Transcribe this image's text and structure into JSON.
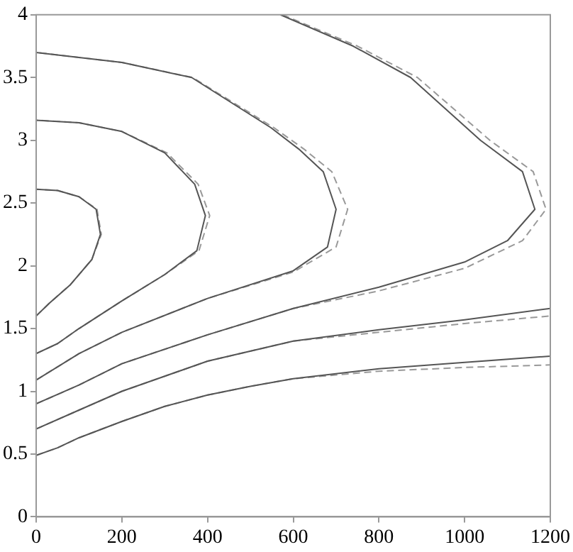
{
  "chart_data": {
    "type": "line",
    "xlim": [
      0,
      1200
    ],
    "ylim": [
      0,
      4
    ],
    "xticks": [
      0,
      200,
      400,
      600,
      800,
      1000,
      1200
    ],
    "yticks": [
      0,
      0.5,
      1,
      1.5,
      2,
      2.5,
      3,
      3.5,
      4
    ],
    "grid": false,
    "legend": false,
    "marker": "none",
    "series": [
      {
        "color": "#555555",
        "line_style": "solid",
        "x": [
          0,
          30,
          80,
          130,
          150,
          140,
          100,
          50,
          0
        ],
        "values": [
          1.6,
          1.7,
          1.85,
          2.05,
          2.25,
          2.45,
          2.55,
          2.6,
          2.61
        ]
      },
      {
        "color": "#999999",
        "line_style": "dashed",
        "x": [
          0,
          30,
          80,
          130,
          152,
          142,
          100,
          50,
          0
        ],
        "values": [
          1.6,
          1.7,
          1.85,
          2.05,
          2.25,
          2.45,
          2.55,
          2.6,
          2.61
        ]
      },
      {
        "color": "#555555",
        "line_style": "solid",
        "x": [
          0,
          50,
          100,
          200,
          300,
          375,
          395,
          370,
          300,
          200,
          100,
          0
        ],
        "values": [
          1.3,
          1.38,
          1.5,
          1.72,
          1.93,
          2.12,
          2.4,
          2.65,
          2.9,
          3.07,
          3.14,
          3.16
        ]
      },
      {
        "color": "#999999",
        "line_style": "dashed",
        "x": [
          0,
          50,
          100,
          200,
          300,
          380,
          405,
          378,
          305,
          200,
          100,
          0
        ],
        "values": [
          1.3,
          1.38,
          1.5,
          1.72,
          1.93,
          2.12,
          2.4,
          2.65,
          2.9,
          3.07,
          3.14,
          3.16
        ]
      },
      {
        "color": "#555555",
        "line_style": "solid",
        "x": [
          0,
          100,
          200,
          400,
          600,
          680,
          700,
          670,
          613,
          548,
          363,
          200,
          0
        ],
        "values": [
          1.09,
          1.3,
          1.47,
          1.74,
          1.96,
          2.15,
          2.45,
          2.75,
          2.93,
          3.1,
          3.5,
          3.62,
          3.7
        ]
      },
      {
        "color": "#999999",
        "line_style": "dashed",
        "x": [
          0,
          100,
          200,
          400,
          600,
          700,
          727,
          690,
          625,
          555,
          365,
          200,
          0
        ],
        "values": [
          1.09,
          1.3,
          1.47,
          1.74,
          1.95,
          2.15,
          2.45,
          2.75,
          2.93,
          3.1,
          3.5,
          3.62,
          3.7
        ]
      },
      {
        "color": "#555555",
        "line_style": "solid",
        "x": [
          0,
          100,
          200,
          400,
          600,
          800,
          1000,
          1100,
          1164,
          1135,
          1037,
          874,
          740,
          570
        ],
        "values": [
          0.9,
          1.05,
          1.22,
          1.45,
          1.66,
          1.83,
          2.03,
          2.2,
          2.45,
          2.75,
          3.0,
          3.5,
          3.75,
          4.0
        ]
      },
      {
        "color": "#999999",
        "line_style": "dashed",
        "x": [
          0,
          100,
          200,
          400,
          600,
          800,
          1000,
          1135,
          1190,
          1160,
          1059,
          890,
          750,
          575
        ],
        "values": [
          0.9,
          1.05,
          1.22,
          1.45,
          1.66,
          1.8,
          1.98,
          2.2,
          2.45,
          2.75,
          3.0,
          3.5,
          3.75,
          4.0
        ]
      },
      {
        "color": "#555555",
        "line_style": "solid",
        "x": [
          0,
          100,
          200,
          400,
          600,
          800,
          1000,
          1200
        ],
        "values": [
          0.7,
          0.85,
          1.0,
          1.24,
          1.4,
          1.49,
          1.57,
          1.66
        ]
      },
      {
        "color": "#999999",
        "line_style": "dashed",
        "x": [
          0,
          100,
          200,
          400,
          600,
          800,
          1000,
          1200
        ],
        "values": [
          0.7,
          0.85,
          1.0,
          1.24,
          1.4,
          1.47,
          1.54,
          1.6
        ]
      },
      {
        "color": "#555555",
        "line_style": "solid",
        "x": [
          0,
          50,
          100,
          200,
          300,
          400,
          500,
          600,
          800,
          1000,
          1200
        ],
        "values": [
          0.49,
          0.55,
          0.63,
          0.76,
          0.88,
          0.97,
          1.04,
          1.1,
          1.18,
          1.23,
          1.28
        ]
      },
      {
        "color": "#999999",
        "line_style": "dashed",
        "x": [
          0,
          50,
          100,
          200,
          300,
          400,
          500,
          600,
          800,
          1000,
          1200
        ],
        "values": [
          0.49,
          0.55,
          0.63,
          0.76,
          0.88,
          0.97,
          1.04,
          1.1,
          1.16,
          1.19,
          1.21
        ]
      }
    ]
  }
}
